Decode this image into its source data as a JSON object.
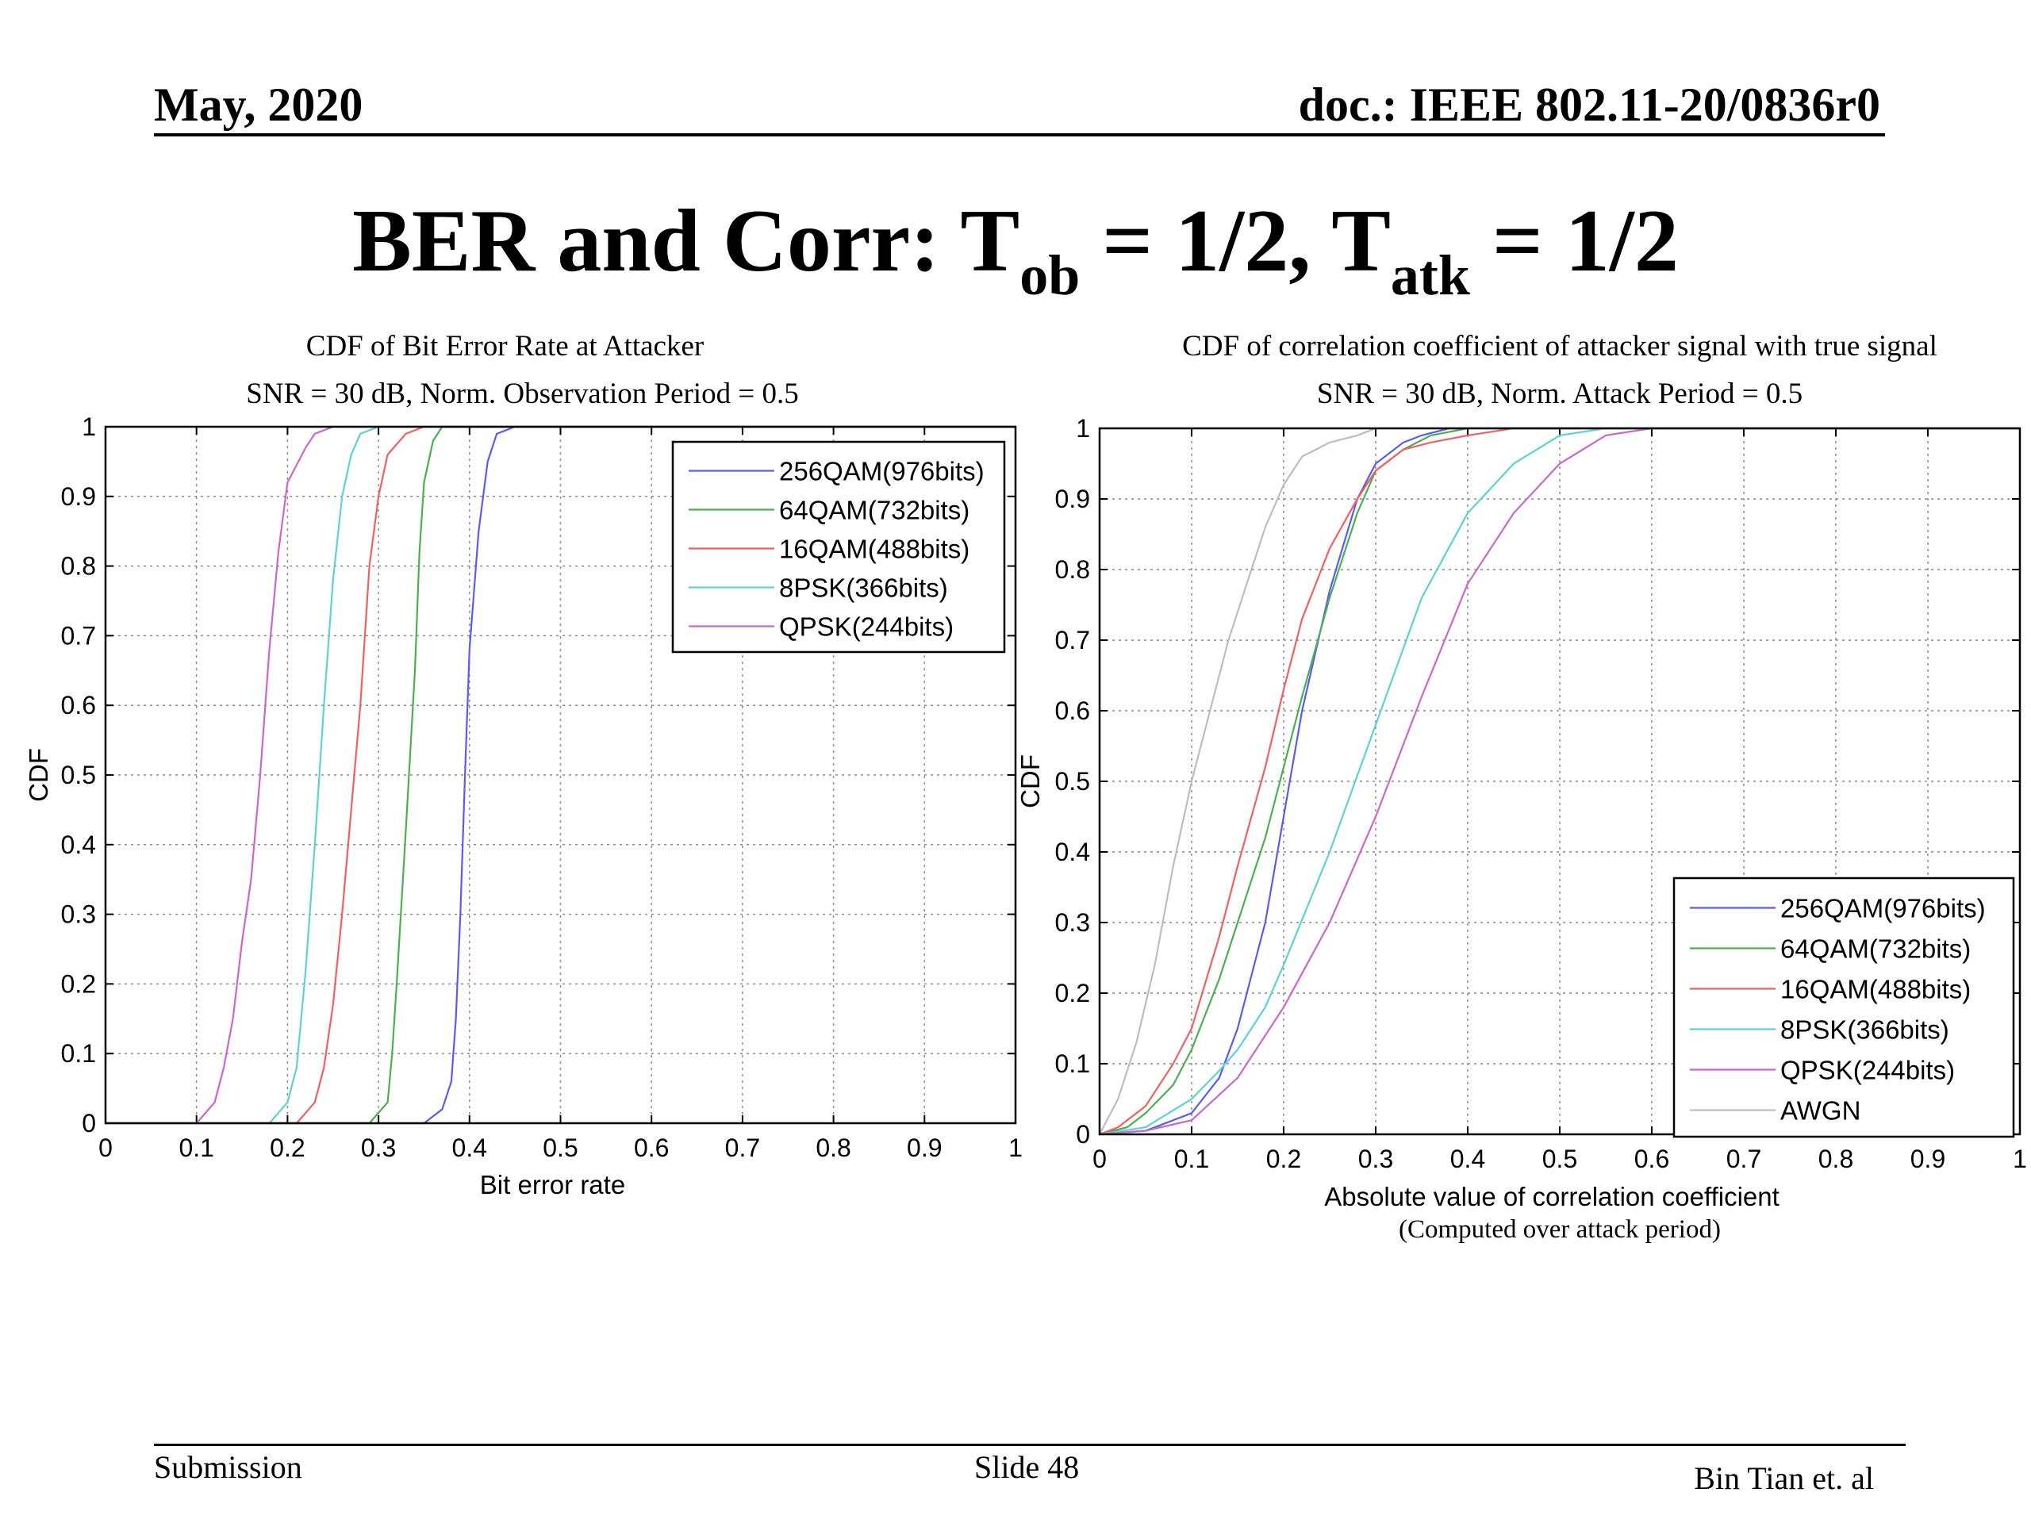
{
  "slide": {
    "header_left": "May, 2020",
    "header_right": "doc.: IEEE 802.11-20/0836r0",
    "title_a": "BER and Corr: T",
    "title_sub1": "ob",
    "title_b": " = 1/2, T",
    "title_sub2": "atk",
    "title_c": " = 1/2",
    "footer_left": "Submission",
    "footer_center": "Slide 48",
    "footer_right": "Bin Tian et. al"
  },
  "chart_data": [
    {
      "type": "line",
      "title": "CDF of Bit Error Rate at Attacker",
      "subtitle": "SNR = 30 dB, Norm. Observation Period = 0.5",
      "xlabel": "Bit error rate",
      "ylabel": "CDF",
      "xlim": [
        0,
        1
      ],
      "ylim": [
        0,
        1
      ],
      "xticks": [
        "0",
        "0.1",
        "0.2",
        "0.3",
        "0.4",
        "0.5",
        "0.6",
        "0.7",
        "0.8",
        "0.9",
        "1"
      ],
      "yticks": [
        "0",
        "0.1",
        "0.2",
        "0.3",
        "0.4",
        "0.5",
        "0.6",
        "0.7",
        "0.8",
        "0.9",
        "1"
      ],
      "grid": true,
      "legend_position": "top-right",
      "series": [
        {
          "name": "256QAM(976bits)",
          "color": "#5b5bf0",
          "x": [
            0,
            0.35,
            0.37,
            0.38,
            0.385,
            0.39,
            0.395,
            0.4,
            0.41,
            0.42,
            0.43,
            0.45,
            1.0
          ],
          "y": [
            0,
            0,
            0.02,
            0.06,
            0.15,
            0.3,
            0.5,
            0.68,
            0.85,
            0.95,
            0.99,
            1.0,
            1.0
          ]
        },
        {
          "name": "64QAM(732bits)",
          "color": "#4caf50",
          "x": [
            0,
            0.29,
            0.31,
            0.315,
            0.32,
            0.33,
            0.34,
            0.345,
            0.35,
            0.36,
            0.37,
            1.0
          ],
          "y": [
            0,
            0,
            0.03,
            0.1,
            0.2,
            0.42,
            0.65,
            0.82,
            0.92,
            0.98,
            1.0,
            1.0
          ]
        },
        {
          "name": "16QAM(488bits)",
          "color": "#f06060",
          "x": [
            0,
            0.21,
            0.23,
            0.24,
            0.25,
            0.26,
            0.27,
            0.28,
            0.29,
            0.3,
            0.31,
            0.33,
            0.35,
            1.0
          ],
          "y": [
            0,
            0,
            0.03,
            0.08,
            0.17,
            0.3,
            0.45,
            0.6,
            0.8,
            0.9,
            0.96,
            0.99,
            1.0,
            1.0
          ]
        },
        {
          "name": "8PSK(366bits)",
          "color": "#5ad3d3",
          "x": [
            0,
            0.18,
            0.2,
            0.21,
            0.22,
            0.23,
            0.24,
            0.25,
            0.26,
            0.27,
            0.28,
            0.3,
            1.0
          ],
          "y": [
            0,
            0,
            0.03,
            0.08,
            0.22,
            0.4,
            0.6,
            0.78,
            0.9,
            0.96,
            0.99,
            1.0,
            1.0
          ]
        },
        {
          "name": "QPSK(244bits)",
          "color": "#cc66cc",
          "x": [
            0,
            0.1,
            0.12,
            0.13,
            0.14,
            0.15,
            0.16,
            0.17,
            0.18,
            0.19,
            0.2,
            0.22,
            0.23,
            0.25,
            1.0
          ],
          "y": [
            0,
            0,
            0.03,
            0.08,
            0.15,
            0.26,
            0.35,
            0.5,
            0.68,
            0.82,
            0.92,
            0.97,
            0.99,
            1.0,
            1.0
          ]
        }
      ]
    },
    {
      "type": "line",
      "title": "CDF of correlation coefficient of attacker signal with true signal",
      "subtitle": "SNR = 30 dB, Norm. Attack Period = 0.5",
      "xlabel": "Absolute value of correlation coefficient",
      "xlabel2": "(Computed over attack period)",
      "ylabel": "CDF",
      "xlim": [
        0,
        1
      ],
      "ylim": [
        0,
        1
      ],
      "xticks": [
        "0",
        "0.1",
        "0.2",
        "0.3",
        "0.4",
        "0.5",
        "0.6",
        "0.7",
        "0.8",
        "0.9",
        "1"
      ],
      "yticks": [
        "0",
        "0.1",
        "0.2",
        "0.3",
        "0.4",
        "0.5",
        "0.6",
        "0.7",
        "0.8",
        "0.9",
        "1"
      ],
      "grid": true,
      "legend_position": "bottom-right",
      "series": [
        {
          "name": "256QAM(976bits)",
          "color": "#5b5bf0",
          "x": [
            0,
            0.05,
            0.1,
            0.13,
            0.15,
            0.18,
            0.2,
            0.22,
            0.25,
            0.28,
            0.3,
            0.33,
            0.35,
            0.38,
            1.0
          ],
          "y": [
            0,
            0.005,
            0.03,
            0.08,
            0.15,
            0.3,
            0.45,
            0.6,
            0.77,
            0.9,
            0.95,
            0.98,
            0.99,
            1.0,
            1.0
          ]
        },
        {
          "name": "64QAM(732bits)",
          "color": "#4caf50",
          "x": [
            0,
            0.03,
            0.05,
            0.08,
            0.1,
            0.13,
            0.15,
            0.18,
            0.2,
            0.22,
            0.25,
            0.28,
            0.3,
            0.33,
            0.36,
            0.4,
            1.0
          ],
          "y": [
            0,
            0.01,
            0.03,
            0.07,
            0.12,
            0.22,
            0.3,
            0.42,
            0.52,
            0.62,
            0.76,
            0.88,
            0.94,
            0.97,
            0.99,
            1.0,
            1.0
          ]
        },
        {
          "name": "16QAM(488bits)",
          "color": "#f06060",
          "x": [
            0,
            0.02,
            0.05,
            0.08,
            0.1,
            0.13,
            0.15,
            0.18,
            0.2,
            0.22,
            0.25,
            0.28,
            0.3,
            0.33,
            0.36,
            0.4,
            0.45,
            1.0
          ],
          "y": [
            0,
            0.01,
            0.04,
            0.1,
            0.15,
            0.28,
            0.38,
            0.52,
            0.63,
            0.73,
            0.83,
            0.9,
            0.94,
            0.97,
            0.98,
            0.99,
            1.0,
            1.0
          ]
        },
        {
          "name": "8PSK(366bits)",
          "color": "#5ad3d3",
          "x": [
            0,
            0.05,
            0.1,
            0.13,
            0.15,
            0.18,
            0.2,
            0.25,
            0.3,
            0.35,
            0.4,
            0.45,
            0.5,
            0.55,
            1.0
          ],
          "y": [
            0,
            0.01,
            0.05,
            0.09,
            0.12,
            0.18,
            0.24,
            0.4,
            0.58,
            0.76,
            0.88,
            0.95,
            0.99,
            1.0,
            1.0
          ]
        },
        {
          "name": "QPSK(244bits)",
          "color": "#cc66cc",
          "x": [
            0,
            0.05,
            0.1,
            0.15,
            0.2,
            0.25,
            0.3,
            0.35,
            0.4,
            0.45,
            0.5,
            0.55,
            0.6,
            1.0
          ],
          "y": [
            0,
            0.005,
            0.02,
            0.08,
            0.18,
            0.3,
            0.45,
            0.62,
            0.78,
            0.88,
            0.95,
            0.99,
            1.0,
            1.0
          ]
        },
        {
          "name": "AWGN",
          "color": "#bdbdbd",
          "x": [
            0,
            0.02,
            0.04,
            0.06,
            0.08,
            0.1,
            0.12,
            0.14,
            0.16,
            0.18,
            0.2,
            0.22,
            0.25,
            0.28,
            0.3,
            1.0
          ],
          "y": [
            0,
            0.05,
            0.13,
            0.24,
            0.38,
            0.5,
            0.6,
            0.7,
            0.78,
            0.86,
            0.92,
            0.96,
            0.98,
            0.99,
            1.0,
            1.0
          ]
        }
      ]
    }
  ]
}
